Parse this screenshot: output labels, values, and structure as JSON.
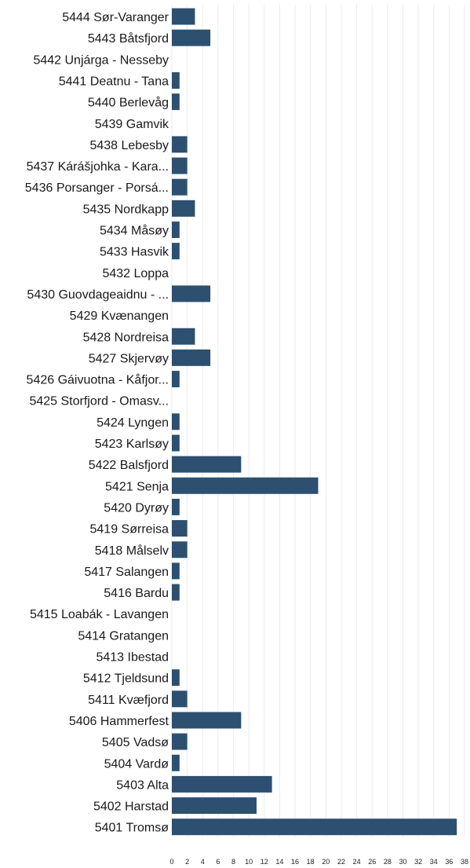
{
  "colors": {
    "bar": "#2d5070",
    "grid": "#ebebeb",
    "text": "#1a1a1a"
  },
  "chart_data": {
    "type": "bar",
    "orientation": "horizontal",
    "title": "",
    "xlabel": "",
    "ylabel": "",
    "xlim": [
      0,
      38
    ],
    "grid": true,
    "xticks": [
      0,
      2,
      4,
      6,
      8,
      10,
      12,
      14,
      16,
      18,
      20,
      22,
      24,
      26,
      28,
      30,
      32,
      34,
      36,
      38
    ],
    "categories": [
      "5444 Sør-Varanger",
      "5443 Båtsfjord",
      "5442 Unjárga - Nesseby",
      "5441 Deatnu - Tana",
      "5440 Berlevåg",
      "5439 Gamvik",
      "5438 Lebesby",
      "5437 Kárášjohka - Kara...",
      "5436 Porsanger - Porsá...",
      "5435 Nordkapp",
      "5434 Måsøy",
      "5433 Hasvik",
      "5432 Loppa",
      "5430 Guovdageaidnu - ...",
      "5429 Kvænangen",
      "5428 Nordreisa",
      "5427 Skjervøy",
      "5426 Gáivuotna - Kåfjor...",
      "5425 Storfjord - Omasv...",
      "5424 Lyngen",
      "5423 Karlsøy",
      "5422 Balsfjord",
      "5421 Senja",
      "5420 Dyrøy",
      "5419 Sørreisa",
      "5418 Målselv",
      "5417 Salangen",
      "5416 Bardu",
      "5415 Loabák - Lavangen",
      "5414 Gratangen",
      "5413 Ibestad",
      "5412 Tjeldsund",
      "5411 Kvæfjord",
      "5406 Hammerfest",
      "5405 Vadsø",
      "5404 Vardø",
      "5403 Alta",
      "5402 Harstad",
      "5401 Tromsø"
    ],
    "values": [
      3,
      5,
      0,
      1,
      1,
      0,
      2,
      2,
      2,
      3,
      1,
      1,
      0,
      5,
      0,
      3,
      5,
      1,
      0,
      1,
      1,
      9,
      19,
      1,
      2,
      2,
      1,
      1,
      0,
      0,
      0,
      1,
      2,
      9,
      2,
      1,
      13,
      11,
      37
    ]
  }
}
